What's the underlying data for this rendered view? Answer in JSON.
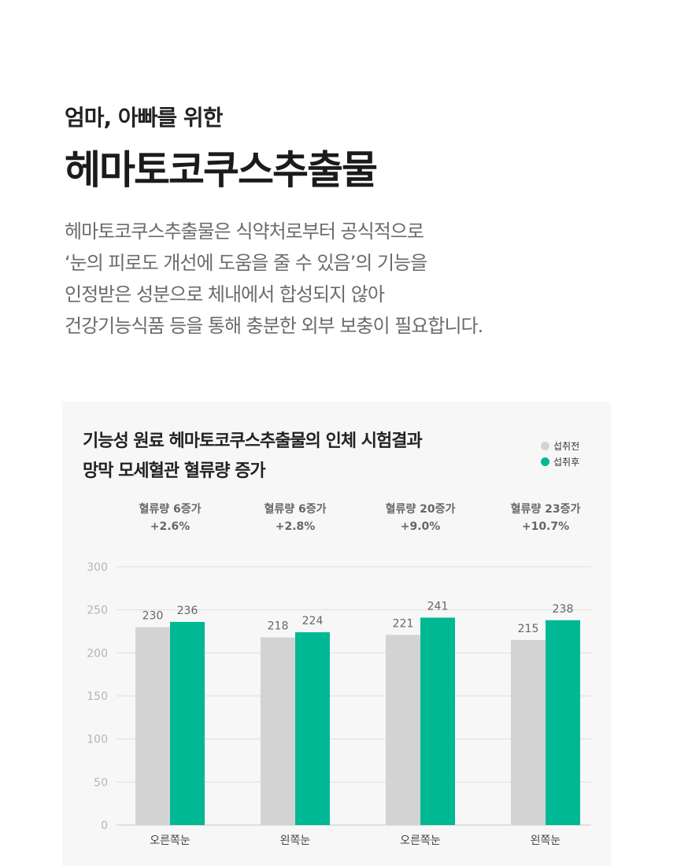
{
  "header": {
    "subtitle": "엄마, 아빠를 위한",
    "title": "헤마토코쿠스추출물",
    "description": [
      "헤마토코쿠스추출물은 식약처로부터 공식적으로",
      "‘눈의 피로도 개선에 도움을 줄 수 있음’의 기능을",
      "인정받은 성분으로 체내에서 합성되지 않아",
      "건강기능식품 등을 통해 충분한 외부 보충이 필요합니다."
    ]
  },
  "chart_panel": {
    "title_line1": "기능성 원료 헤마토코쿠스추출물의 인체 시험결과",
    "title_line2": "망막 모세혈관 혈류량 증가"
  },
  "colors": {
    "before": "#d3d3d3",
    "after": "#00b894"
  },
  "chart_data": {
    "type": "bar",
    "categories": [
      "오른쪽눈",
      "왼쪽눈",
      "오른쪽눈",
      "왼쪽눈"
    ],
    "series": [
      {
        "name": "섭취전",
        "values": [
          230,
          218,
          221,
          215
        ]
      },
      {
        "name": "섭취후",
        "values": [
          236,
          224,
          241,
          238
        ]
      }
    ],
    "annotations": [
      {
        "label": "혈류량 6증가",
        "change": "+2.6%"
      },
      {
        "label": "혈류량 6증가",
        "change": "+2.8%"
      },
      {
        "label": "혈류량 20증가",
        "change": "+9.0%"
      },
      {
        "label": "혈류량 23증가",
        "change": "+10.7%"
      }
    ],
    "ylim": [
      0,
      300
    ],
    "yticks": [
      0,
      50,
      100,
      150,
      200,
      250,
      300
    ],
    "grid": true,
    "legend": "top-right"
  }
}
